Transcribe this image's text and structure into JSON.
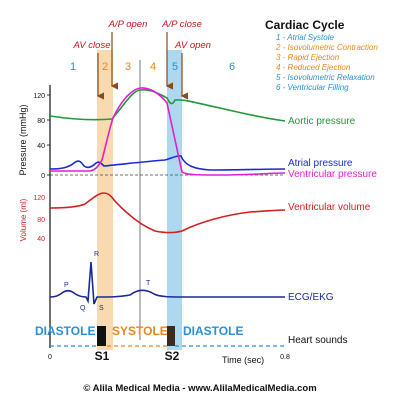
{
  "legend": {
    "title": "Cardiac Cycle",
    "items": [
      {
        "text": "1 - Atrial Systole",
        "color": "#2a8fd6"
      },
      {
        "text": "2 - Isovolumetric Contraction",
        "color": "#e8871a"
      },
      {
        "text": "3 - Rapid Ejection",
        "color": "#e8871a"
      },
      {
        "text": "4 - Reduced Ejection",
        "color": "#e8871a"
      },
      {
        "text": "5 - Isovolumetric Relaxation",
        "color": "#2a8fd6"
      },
      {
        "text": "6 - Ventricular Filling",
        "color": "#2a8fd6"
      }
    ]
  },
  "valve_events": {
    "av_close": "AV close",
    "ap_open": "A/P open",
    "ap_close": "A/P close",
    "av_open": "AV open"
  },
  "phases": [
    {
      "label": "1",
      "color": "#2a8fd6"
    },
    {
      "label": "2",
      "color": "#e8871a"
    },
    {
      "label": "3",
      "color": "#e8871a"
    },
    {
      "label": "4",
      "color": "#e8871a"
    },
    {
      "label": "5",
      "color": "#2a8fd6"
    },
    {
      "label": "6",
      "color": "#2a8fd6"
    }
  ],
  "axes": {
    "pressure_label": "Pressure (mmHg)",
    "pressure_ticks": [
      "120",
      "80",
      "40",
      "0"
    ],
    "volume_label": "Volume (ml)",
    "volume_ticks": [
      "120",
      "80",
      "40"
    ],
    "time_label": "Time (sec)",
    "time_start": "0",
    "time_end": "0.8"
  },
  "curves": {
    "aortic": {
      "label": "Aortic pressure",
      "color": "#1e9a3a"
    },
    "atrial": {
      "label": "Atrial pressure",
      "color": "#1a2bd6"
    },
    "ventricular": {
      "label": "Ventricular pressure",
      "color": "#e020d0"
    },
    "volume": {
      "label": "Ventricular volume",
      "color": "#d41f1f"
    },
    "ecg": {
      "label": "ECG/EKG",
      "color": "#1a2a9a"
    }
  },
  "ecg_waves": {
    "p": "P",
    "q": "Q",
    "r": "R",
    "s": "S",
    "t": "T"
  },
  "bottom": {
    "diastole_left": "DIASTOLE",
    "systole": "SYSTOLE",
    "diastole_right": "DIASTOLE",
    "heart_sounds": "Heart sounds",
    "s1": "S1",
    "s2": "S2"
  },
  "colors": {
    "systole_band": "#f9d9b0",
    "relaxation_band": "#aed8ef",
    "diastole_text": "#2a8fd6",
    "systole_text": "#e8871a",
    "valve_arrow": "#8a4a1a",
    "valve_text": "#c9151c"
  },
  "footer": "© Alila Medical Media - www.AlilaMedicalMedia.com"
}
